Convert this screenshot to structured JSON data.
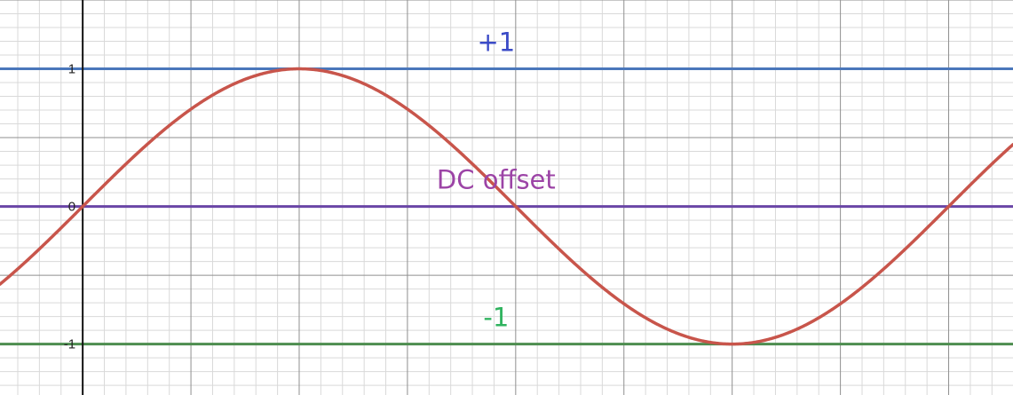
{
  "chart_data": {
    "type": "line",
    "title": "",
    "xlabel": "",
    "ylabel": "",
    "xlim": [
      -0.6,
      6.75
    ],
    "ylim": [
      -1.37,
      1.5
    ],
    "grid": true,
    "y_tick_labels": [
      "1",
      "0",
      "-1"
    ],
    "y_tick_values": [
      1,
      0,
      -1
    ],
    "series": [
      {
        "kind": "function",
        "expression": "sin(x)",
        "color": "#c8554b"
      },
      {
        "kind": "horizontal-line",
        "y": 1,
        "color": "#4a77bb"
      },
      {
        "kind": "horizontal-line",
        "y": 0,
        "color": "#6a46a6"
      },
      {
        "kind": "horizontal-line",
        "y": -1,
        "color": "#4d8d4f"
      }
    ],
    "annotations": [
      {
        "text": "+1",
        "x": 3.0,
        "y": 1.13,
        "color": "#3b4bc7"
      },
      {
        "text": "DC offset",
        "x": 3.0,
        "y": 0.13,
        "color": "#9c44a6"
      },
      {
        "text": "-1",
        "x": 3.0,
        "y": -0.87,
        "color": "#30b35f"
      }
    ],
    "colors": {
      "minor_grid": "#d9d9d9",
      "major_grid": "#8f8f8f",
      "y_axis": "#111111"
    }
  }
}
